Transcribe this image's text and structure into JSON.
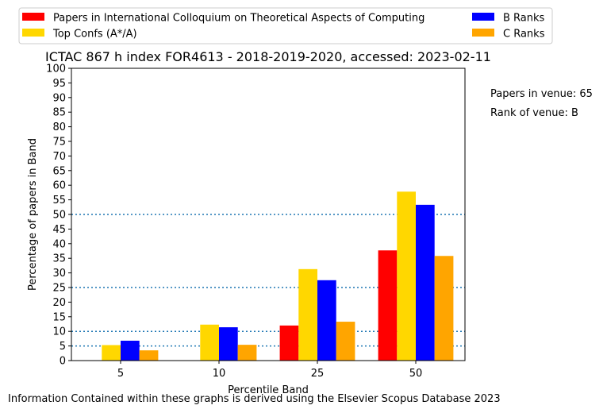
{
  "chart_data": {
    "type": "bar",
    "title": "ICTAC 867 h index FOR4613 - 2018-2019-2020, accessed: 2023-02-11",
    "xlabel": "Percentile Band",
    "ylabel": "Percentage of papers in Band",
    "categories": [
      "5",
      "10",
      "25",
      "50"
    ],
    "ylim": [
      0,
      100
    ],
    "yticks": [
      0,
      5,
      10,
      15,
      20,
      25,
      30,
      35,
      40,
      45,
      50,
      55,
      60,
      65,
      70,
      75,
      80,
      85,
      90,
      95,
      100
    ],
    "reference_lines": [
      5,
      10,
      25,
      50
    ],
    "legend_position": "above plot",
    "series": [
      {
        "name": "Papers in International Colloquium on Theoretical Aspects of Computing",
        "color": "#ff0000",
        "values": [
          0,
          0,
          12.0,
          37.7
        ]
      },
      {
        "name": "Top Confs (A*/A)",
        "color": "#ffd700",
        "values": [
          5.3,
          12.3,
          31.3,
          57.8
        ]
      },
      {
        "name": "B Ranks",
        "color": "#0000ff",
        "values": [
          6.8,
          11.4,
          27.5,
          53.3
        ]
      },
      {
        "name": "C Ranks",
        "color": "#ffa500",
        "values": [
          3.5,
          5.4,
          13.3,
          35.8
        ]
      }
    ]
  },
  "side_notes": {
    "papers": "Papers in venue: 65",
    "rank": "Rank of venue: B"
  },
  "footer": "Information Contained within these graphs is derived using the Elsevier Scopus Database 2023"
}
